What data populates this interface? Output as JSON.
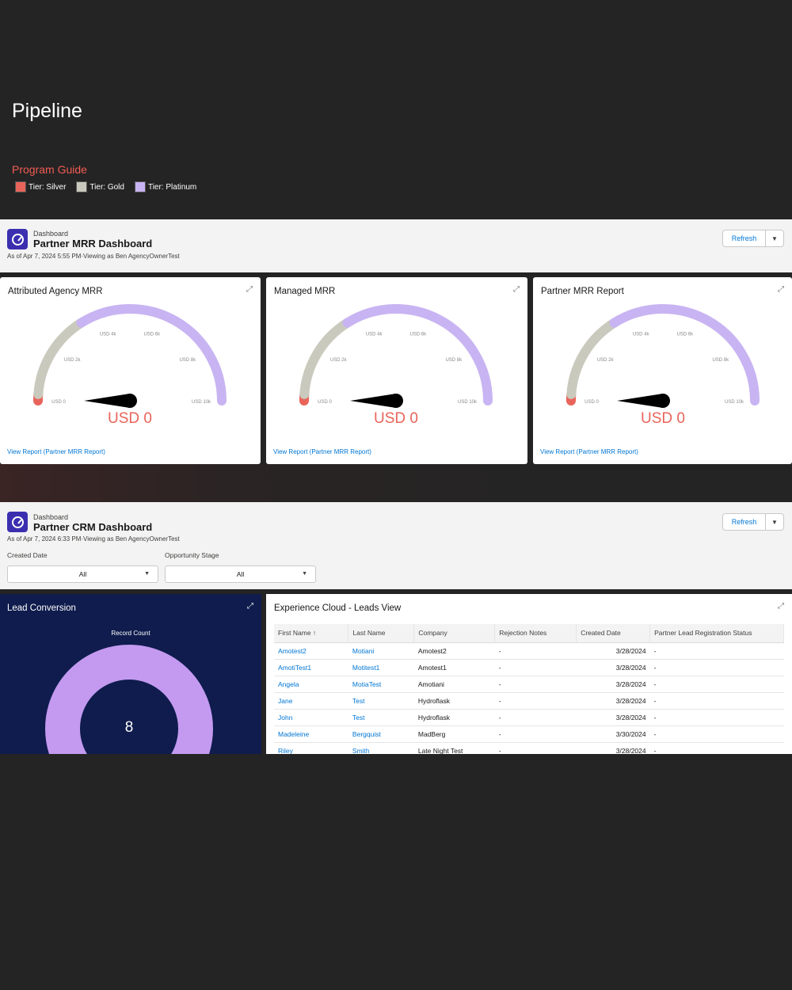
{
  "page": {
    "title": "Pipeline",
    "program_guide": "Program Guide",
    "legend": [
      {
        "label": "Tier: Silver",
        "color": "#e8645a"
      },
      {
        "label": "Tier: Gold",
        "color": "#c9c9bd"
      },
      {
        "label": "Tier: Platinum",
        "color": "#c8b4f2"
      }
    ]
  },
  "mrr_dashboard": {
    "kicker": "Dashboard",
    "title": "Partner MRR Dashboard",
    "subtitle": "As of Apr 7, 2024 5:55 PM·Viewing as Ben AgencyOwnerTest",
    "refresh_label": "Refresh",
    "menu_icon": "chevron-down-icon",
    "cards": [
      {
        "title": "Attributed Agency MRR",
        "value": "USD 0",
        "link": "View Report (Partner MRR Report)"
      },
      {
        "title": "Managed MRR",
        "value": "USD 0",
        "link": "View Report (Partner MRR Report)"
      },
      {
        "title": "Partner MRR Report",
        "value": "USD 0",
        "link": "View Report (Partner MRR Report)"
      }
    ],
    "gauge_ticks": [
      "USD 0",
      "USD 2k",
      "USD 4k",
      "USD 6k",
      "USD 8k",
      "USD 10k"
    ],
    "gauge_level": 0,
    "colors": {
      "silver": "#e8645a",
      "gold": "#c9c9bd",
      "platinum": "#c8b4f2",
      "value": "#e8645a"
    }
  },
  "crm_dashboard": {
    "kicker": "Dashboard",
    "title": "Partner CRM Dashboard",
    "subtitle": "As of Apr 7, 2024 6:33 PM·Viewing as Ben AgencyOwnerTest",
    "refresh_label": "Refresh",
    "filters": [
      {
        "label": "Created Date",
        "value": "All"
      },
      {
        "label": "Opportunity Stage",
        "value": "All"
      }
    ],
    "lead_conversion": {
      "title": "Lead Conversion",
      "subtitle": "Record Count",
      "value": "8",
      "color": "#c39af0"
    },
    "leads_view": {
      "title": "Experience Cloud - Leads View",
      "columns": [
        "First Name ↑",
        "Last Name",
        "Company",
        "Rejection Notes",
        "Created Date",
        "Partner Lead Registration Status"
      ],
      "rows": [
        [
          "Amotest2",
          "Motiani",
          "Amotest2",
          "-",
          "3/28/2024",
          "-"
        ],
        [
          "AmotiTest1",
          "Motitest1",
          "Amotest1",
          "-",
          "3/28/2024",
          "-"
        ],
        [
          "Angela",
          "MotiaTest",
          "Amotiani",
          "-",
          "3/28/2024",
          "-"
        ],
        [
          "Jane",
          "Test",
          "Hydroflask",
          "-",
          "3/28/2024",
          "-"
        ],
        [
          "John",
          "Test",
          "Hydroflask",
          "-",
          "3/28/2024",
          "-"
        ],
        [
          "Madeleine",
          "Bergquist",
          "MadBerg",
          "-",
          "3/30/2024",
          "-"
        ],
        [
          "Riley",
          "Smith",
          "Late Night Test",
          "-",
          "3/28/2024",
          "-"
        ]
      ]
    }
  }
}
